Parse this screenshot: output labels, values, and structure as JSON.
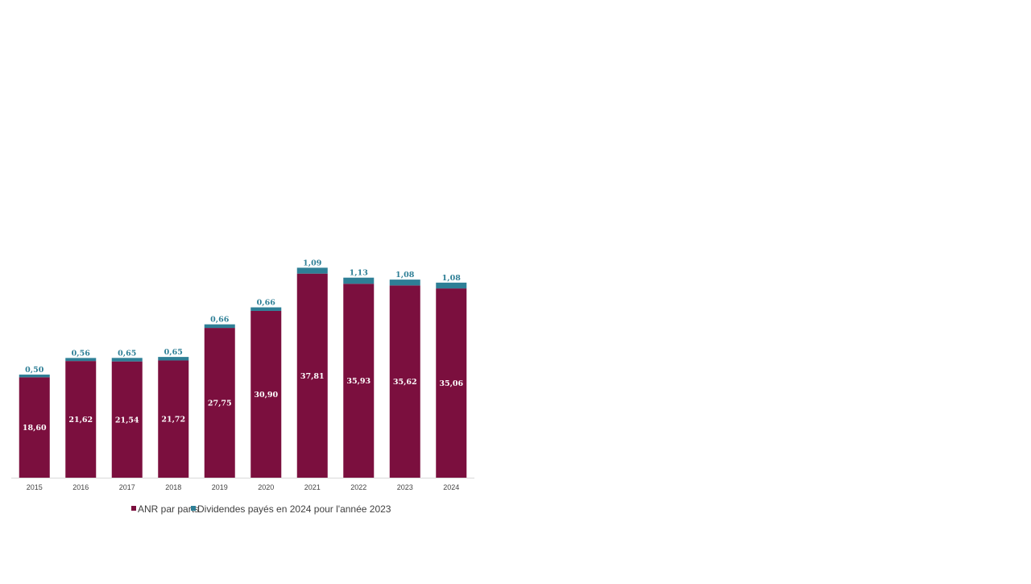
{
  "chart_data": {
    "type": "bar",
    "stacked": true,
    "title": "",
    "xlabel": "",
    "ylabel": "",
    "categories": [
      "2015",
      "2016",
      "2017",
      "2018",
      "2019",
      "2020",
      "2021",
      "2022",
      "2023",
      "2024"
    ],
    "series": [
      {
        "name": "ANR par parts",
        "color": "#7b0f3e",
        "values": [
          18.6,
          21.62,
          21.54,
          21.72,
          27.75,
          30.9,
          37.81,
          35.93,
          35.62,
          35.06
        ],
        "labels": [
          "18,60",
          "21,62",
          "21,54",
          "21,72",
          "27,75",
          "30,90",
          "37,81",
          "35,93",
          "35,62",
          "35,06"
        ]
      },
      {
        "name": "Dividendes payés en 2024 pour l'année 2023",
        "color": "#2e7f96",
        "values": [
          0.5,
          0.56,
          0.65,
          0.65,
          0.66,
          0.66,
          1.09,
          1.13,
          1.08,
          1.08
        ],
        "labels": [
          "0,50",
          "0,56",
          "0,65",
          "0,65",
          "0,66",
          "0,66",
          "1,09",
          "1,13",
          "1,08",
          "1,08"
        ]
      }
    ],
    "ylim": [
      0,
      39
    ],
    "grid": false,
    "legend_position": "bottom"
  }
}
